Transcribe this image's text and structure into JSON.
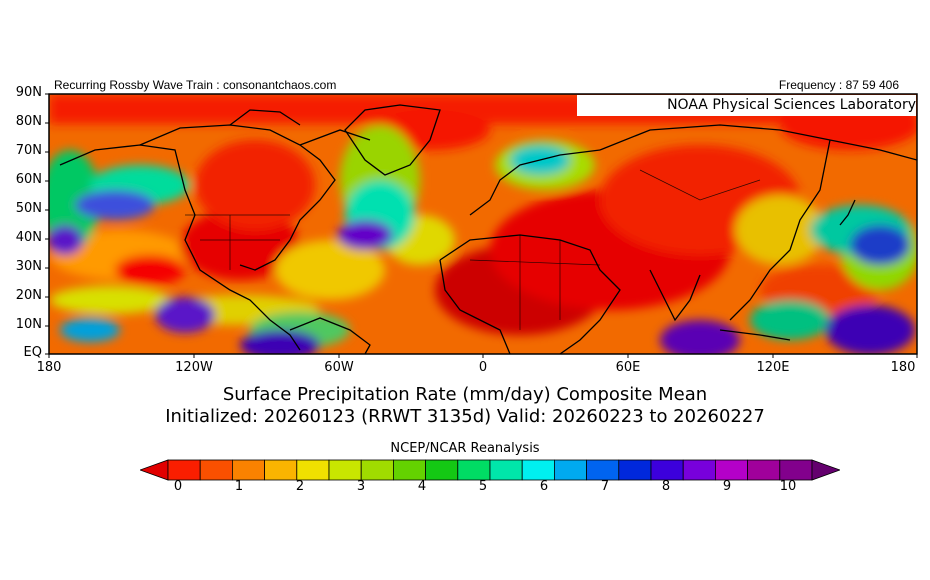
{
  "header": {
    "left_text": "Recurring Rossby Wave Train : consonantchaos.com",
    "right_text": "Frequency : 87 59 406"
  },
  "map": {
    "overlay_label": "NOAA Physical Sciences Laboratory",
    "lat_labels": [
      "90N",
      "80N",
      "70N",
      "60N",
      "50N",
      "40N",
      "30N",
      "20N",
      "10N",
      "EQ"
    ],
    "lon_labels": [
      "180",
      "120W",
      "60W",
      "0",
      "60E",
      "120E",
      "180"
    ],
    "colors": {
      "dry": "#e60000",
      "moist": "#28dc64",
      "wet": "#5a00c8"
    }
  },
  "title": {
    "line1": "Surface Precipitation Rate (mm/day) Composite Mean",
    "line2": "Initialized: 20260123 (RRWT 3135d) Valid: 20260223 to 20260227"
  },
  "colorbar": {
    "source_label": "NCEP/NCAR Reanalysis",
    "tick_labels": [
      "0",
      "1",
      "2",
      "3",
      "4",
      "5",
      "6",
      "7",
      "8",
      "9",
      "10"
    ],
    "colors": [
      "#e10000",
      "#fa1e00",
      "#fa5000",
      "#fa8200",
      "#fab400",
      "#f0e000",
      "#c8e600",
      "#a0dc00",
      "#64d200",
      "#14c814",
      "#00dc64",
      "#00e6aa",
      "#00f0f0",
      "#00aaf0",
      "#0064f0",
      "#0028dc",
      "#3c00dc",
      "#7800dc",
      "#b400c8",
      "#a0009b",
      "#82008c",
      "#64006e"
    ]
  }
}
